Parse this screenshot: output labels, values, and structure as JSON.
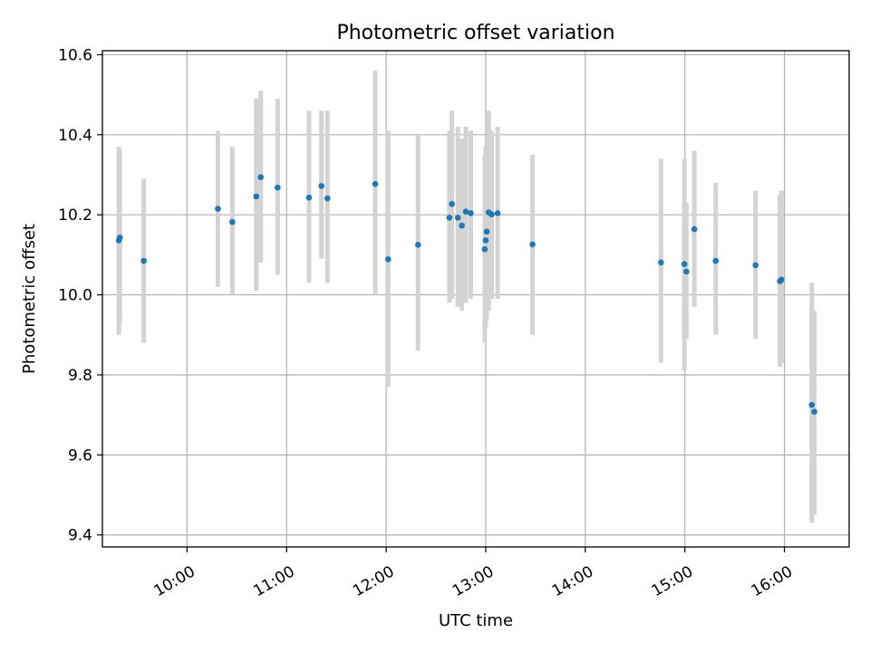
{
  "chart_data": {
    "type": "scatter",
    "title": "Photometric offset variation",
    "xlabel": "UTC time",
    "ylabel": "Photometric offset",
    "xlim_hours": [
      9.15,
      16.65
    ],
    "ylim": [
      9.37,
      10.61
    ],
    "grid": true,
    "x_ticks": [
      {
        "label": "10:00",
        "hour": 10
      },
      {
        "label": "11:00",
        "hour": 11
      },
      {
        "label": "12:00",
        "hour": 12
      },
      {
        "label": "13:00",
        "hour": 13
      },
      {
        "label": "14:00",
        "hour": 14
      },
      {
        "label": "15:00",
        "hour": 15
      },
      {
        "label": "16:00",
        "hour": 16
      }
    ],
    "y_ticks": [
      {
        "label": "9.4",
        "value": 9.4
      },
      {
        "label": "9.6",
        "value": 9.6
      },
      {
        "label": "9.8",
        "value": 9.8
      },
      {
        "label": "10.0",
        "value": 10.0
      },
      {
        "label": "10.2",
        "value": 10.2
      },
      {
        "label": "10.4",
        "value": 10.4
      },
      {
        "label": "10.6",
        "value": 10.6
      }
    ],
    "colors": {
      "point": "#1f77b4",
      "errorbar": "#d3d3d3",
      "grid": "#b0b0b0",
      "axes": "#000000"
    },
    "series": [
      {
        "name": "offset",
        "points": [
          {
            "hour": 9.315,
            "y": 10.136,
            "lo": 9.9,
            "hi": 10.37
          },
          {
            "hour": 9.325,
            "y": 10.143,
            "lo": 9.93,
            "hi": 10.36
          },
          {
            "hour": 9.565,
            "y": 10.085,
            "lo": 9.88,
            "hi": 10.29
          },
          {
            "hour": 10.31,
            "y": 10.215,
            "lo": 10.02,
            "hi": 10.41
          },
          {
            "hour": 10.455,
            "y": 10.182,
            "lo": 10.0,
            "hi": 10.37
          },
          {
            "hour": 10.695,
            "y": 10.246,
            "lo": 10.01,
            "hi": 10.49
          },
          {
            "hour": 10.74,
            "y": 10.294,
            "lo": 10.08,
            "hi": 10.51
          },
          {
            "hour": 10.91,
            "y": 10.268,
            "lo": 10.05,
            "hi": 10.49
          },
          {
            "hour": 11.225,
            "y": 10.243,
            "lo": 10.03,
            "hi": 10.46
          },
          {
            "hour": 11.35,
            "y": 10.272,
            "lo": 10.09,
            "hi": 10.46
          },
          {
            "hour": 11.41,
            "y": 10.241,
            "lo": 10.03,
            "hi": 10.46
          },
          {
            "hour": 11.89,
            "y": 10.277,
            "lo": 10.0,
            "hi": 10.56
          },
          {
            "hour": 12.02,
            "y": 10.089,
            "lo": 9.77,
            "hi": 10.41
          },
          {
            "hour": 12.32,
            "y": 10.125,
            "lo": 9.86,
            "hi": 10.4
          },
          {
            "hour": 12.635,
            "y": 10.193,
            "lo": 9.98,
            "hi": 10.41
          },
          {
            "hour": 12.66,
            "y": 10.227,
            "lo": 9.99,
            "hi": 10.46
          },
          {
            "hour": 12.72,
            "y": 10.193,
            "lo": 9.97,
            "hi": 10.42
          },
          {
            "hour": 12.76,
            "y": 10.173,
            "lo": 9.96,
            "hi": 10.39
          },
          {
            "hour": 12.8,
            "y": 10.208,
            "lo": 9.98,
            "hi": 10.42
          },
          {
            "hour": 12.85,
            "y": 10.204,
            "lo": 9.99,
            "hi": 10.41
          },
          {
            "hour": 12.99,
            "y": 10.114,
            "lo": 9.88,
            "hi": 10.35
          },
          {
            "hour": 13.0,
            "y": 10.136,
            "lo": 9.92,
            "hi": 10.37
          },
          {
            "hour": 13.01,
            "y": 10.158,
            "lo": 9.94,
            "hi": 10.38
          },
          {
            "hour": 13.03,
            "y": 10.206,
            "lo": 9.96,
            "hi": 10.46
          },
          {
            "hour": 13.06,
            "y": 10.201,
            "lo": 9.99,
            "hi": 10.41
          },
          {
            "hour": 13.12,
            "y": 10.204,
            "lo": 9.99,
            "hi": 10.42
          },
          {
            "hour": 13.47,
            "y": 10.126,
            "lo": 9.9,
            "hi": 10.35
          },
          {
            "hour": 14.76,
            "y": 10.081,
            "lo": 9.83,
            "hi": 10.34
          },
          {
            "hour": 14.995,
            "y": 10.077,
            "lo": 9.81,
            "hi": 10.34
          },
          {
            "hour": 15.015,
            "y": 10.058,
            "lo": 9.89,
            "hi": 10.23
          },
          {
            "hour": 15.095,
            "y": 10.164,
            "lo": 9.97,
            "hi": 10.36
          },
          {
            "hour": 15.31,
            "y": 10.085,
            "lo": 9.9,
            "hi": 10.28
          },
          {
            "hour": 15.71,
            "y": 10.074,
            "lo": 9.89,
            "hi": 10.26
          },
          {
            "hour": 15.955,
            "y": 10.034,
            "lo": 9.82,
            "hi": 10.25
          },
          {
            "hour": 15.97,
            "y": 10.038,
            "lo": 9.83,
            "hi": 10.26
          },
          {
            "hour": 16.275,
            "y": 9.725,
            "lo": 9.43,
            "hi": 10.03
          },
          {
            "hour": 16.3,
            "y": 9.708,
            "lo": 9.45,
            "hi": 9.96
          }
        ]
      }
    ]
  }
}
